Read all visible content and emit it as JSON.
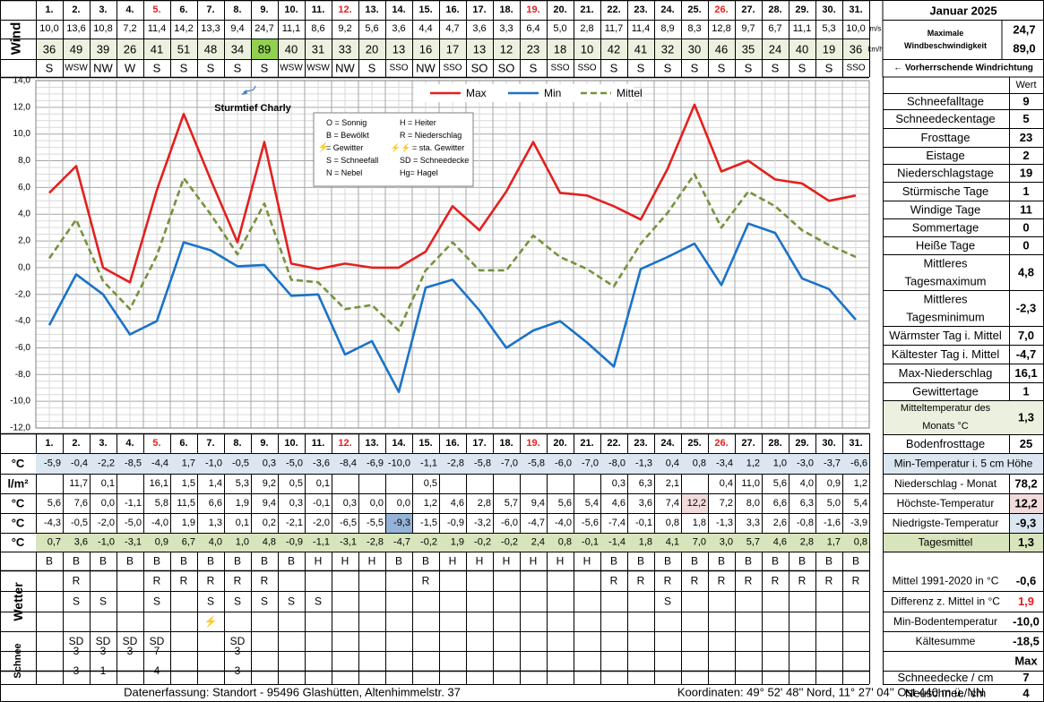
{
  "month_title": "Januar 2025",
  "days": [
    "1.",
    "2.",
    "3.",
    "4.",
    "5.",
    "6.",
    "7.",
    "8.",
    "9.",
    "10.",
    "11.",
    "12.",
    "13.",
    "14.",
    "15.",
    "16.",
    "17.",
    "18.",
    "19.",
    "20.",
    "21.",
    "22.",
    "23.",
    "24.",
    "25.",
    "26.",
    "27.",
    "28.",
    "29.",
    "30.",
    "31."
  ],
  "red_days": [
    5,
    12,
    19,
    26
  ],
  "wind": {
    "label": "Wind",
    "unit_ms": "m/s",
    "unit_kmh": "km/h",
    "ms": [
      "10,0",
      "13,6",
      "10,8",
      "7,2",
      "11,4",
      "14,2",
      "13,3",
      "9,4",
      "24,7",
      "11,1",
      "8,6",
      "9,2",
      "5,6",
      "3,6",
      "4,4",
      "4,7",
      "3,6",
      "3,3",
      "6,4",
      "5,0",
      "2,8",
      "11,7",
      "11,4",
      "8,9",
      "8,3",
      "12,8",
      "9,7",
      "6,7",
      "11,1",
      "5,3",
      "10,0"
    ],
    "kmh": [
      "36",
      "49",
      "39",
      "26",
      "41",
      "51",
      "48",
      "34",
      "89",
      "40",
      "31",
      "33",
      "20",
      "13",
      "16",
      "17",
      "13",
      "12",
      "23",
      "18",
      "10",
      "42",
      "41",
      "32",
      "30",
      "46",
      "35",
      "24",
      "40",
      "19",
      "36"
    ],
    "dir": [
      "S",
      "WSW",
      "NW",
      "W",
      "S",
      "S",
      "S",
      "S",
      "S",
      "WSW",
      "WSW",
      "NW",
      "S",
      "SSO",
      "NW",
      "SSO",
      "SO",
      "SO",
      "S",
      "SSO",
      "SSO",
      "S",
      "S",
      "S",
      "S",
      "S",
      "S",
      "S",
      "S",
      "S",
      "SSO"
    ],
    "max_label": "Maximale Windbeschwindigkeit",
    "max_ms": "24,7",
    "max_kmh": "89,0",
    "dir_note": "← Vorherrschende Windrichtung",
    "highlight_color": "#92d050"
  },
  "storm_label": "Sturmtief Charly",
  "legend_box": {
    "left": [
      "O = Sonnig",
      "B = Bewölkt",
      "= Gewitter",
      "S = Schneefall",
      "N = Nebel"
    ],
    "right": [
      "H = Heiter",
      "R = Niederschlag",
      "= sta. Gewitter",
      "SD = Schneedecke",
      "Hg= Hagel"
    ]
  },
  "chart_data": {
    "type": "line",
    "x": [
      1,
      2,
      3,
      4,
      5,
      6,
      7,
      8,
      9,
      10,
      11,
      12,
      13,
      14,
      15,
      16,
      17,
      18,
      19,
      20,
      21,
      22,
      23,
      24,
      25,
      26,
      27,
      28,
      29,
      30,
      31
    ],
    "ylim": [
      -12,
      14
    ],
    "yticks": [
      "14,0",
      "12,0",
      "10,0",
      "8,0",
      "6,0",
      "4,0",
      "2,0",
      "0,0",
      "-2,0",
      "-4,0",
      "-6,0",
      "-8,0",
      "-10,0",
      "-12,0"
    ],
    "series": [
      {
        "name": "Max",
        "color": "#e3201e",
        "dash": false,
        "values": [
          5.6,
          7.6,
          0.0,
          -1.1,
          5.8,
          11.5,
          6.6,
          1.9,
          9.4,
          0.3,
          -0.1,
          0.3,
          0.0,
          0.0,
          1.2,
          4.6,
          2.8,
          5.7,
          9.4,
          5.6,
          5.4,
          4.6,
          3.6,
          7.4,
          12.2,
          7.2,
          8.0,
          6.6,
          6.3,
          5.0,
          5.4
        ]
      },
      {
        "name": "Min",
        "color": "#1a73c8",
        "dash": false,
        "values": [
          -4.3,
          -0.5,
          -2.0,
          -5.0,
          -4.0,
          1.9,
          1.3,
          0.1,
          0.2,
          -2.1,
          -2.0,
          -6.5,
          -5.5,
          -9.3,
          -1.5,
          -0.9,
          -3.2,
          -6.0,
          -4.7,
          -4.0,
          -5.6,
          -7.4,
          -0.1,
          0.8,
          1.8,
          -1.3,
          3.3,
          2.6,
          -0.8,
          -1.6,
          -3.9
        ]
      },
      {
        "name": "Mittel",
        "color": "#76923c",
        "dash": true,
        "values": [
          0.7,
          3.6,
          -1.0,
          -3.1,
          0.9,
          6.7,
          4.0,
          1.0,
          4.8,
          -0.9,
          -1.1,
          -3.1,
          -2.8,
          -4.7,
          -0.2,
          1.9,
          -0.2,
          -0.2,
          2.4,
          0.8,
          -0.1,
          -1.4,
          1.8,
          4.1,
          7.0,
          3.0,
          5.7,
          4.6,
          2.8,
          1.7,
          0.8
        ]
      }
    ]
  },
  "rows": {
    "min5": {
      "unit": "°C",
      "label": "Min-Temperatur i. 5 cm Höhe",
      "values": [
        "-5,9",
        "-0,4",
        "-2,2",
        "-8,5",
        "-4,4",
        "1,7",
        "-1,0",
        "-0,5",
        "0,3",
        "-5,0",
        "-3,6",
        "-8,4",
        "-6,9",
        "-10,0",
        "-1,1",
        "-2,8",
        "-5,8",
        "-7,0",
        "-5,8",
        "-6,0",
        "-7,0",
        "-8,0",
        "-1,3",
        "0,4",
        "0,8",
        "-3,4",
        "1,2",
        "1,0",
        "-3,0",
        "-3,7",
        "-6,6"
      ],
      "bg": "#dce6f1"
    },
    "rain": {
      "unit": "l/m²",
      "label": "Niederschlag - Monat",
      "total": "78,2",
      "values": [
        "",
        "11,7",
        "0,1",
        "",
        "16,1",
        "1,5",
        "1,4",
        "5,3",
        "9,2",
        "0,5",
        "0,1",
        "",
        "",
        "",
        "0,5",
        "",
        "",
        "",
        "",
        "",
        "",
        "0,3",
        "6,3",
        "2,1",
        "",
        "0,4",
        "11,0",
        "5,6",
        "4,0",
        "0,9",
        "1,2"
      ],
      "highlight_color": "#fac090"
    },
    "max": {
      "unit": "°C",
      "label": "Höchste-Temperatur",
      "total": "12,2",
      "values": [
        "5,6",
        "7,6",
        "0,0",
        "-1,1",
        "5,8",
        "11,5",
        "6,6",
        "1,9",
        "9,4",
        "0,3",
        "-0,1",
        "0,3",
        "0,0",
        "0,0",
        "1,2",
        "4,6",
        "2,8",
        "5,7",
        "9,4",
        "5,6",
        "5,4",
        "4,6",
        "3,6",
        "7,4",
        "12,2",
        "7,2",
        "8,0",
        "6,6",
        "6,3",
        "5,0",
        "5,4"
      ],
      "highlight_color": "#f2dcdb"
    },
    "min": {
      "unit": "°C",
      "label": "Niedrigste-Temperatur",
      "total": "-9,3",
      "values": [
        "-4,3",
        "-0,5",
        "-2,0",
        "-5,0",
        "-4,0",
        "1,9",
        "1,3",
        "0,1",
        "0,2",
        "-2,1",
        "-2,0",
        "-6,5",
        "-5,5",
        "-9,3",
        "-1,5",
        "-0,9",
        "-3,2",
        "-6,0",
        "-4,7",
        "-4,0",
        "-5,6",
        "-7,4",
        "-0,1",
        "0,8",
        "1,8",
        "-1,3",
        "3,3",
        "2,6",
        "-0,8",
        "-1,6",
        "-3,9"
      ],
      "highlight_color": "#95b3d7"
    },
    "mean": {
      "unit": "°C",
      "label": "Tagesmittel",
      "total": "1,3",
      "values": [
        "0,7",
        "3,6",
        "-1,0",
        "-3,1",
        "0,9",
        "6,7",
        "4,0",
        "1,0",
        "4,8",
        "-0,9",
        "-1,1",
        "-3,1",
        "-2,8",
        "-4,7",
        "-0,2",
        "1,9",
        "-0,2",
        "-0,2",
        "2,4",
        "0,8",
        "-0,1",
        "-1,4",
        "1,8",
        "4,1",
        "7,0",
        "3,0",
        "5,7",
        "4,6",
        "2,8",
        "1,7",
        "0,8"
      ],
      "bg": "#d8e4bc",
      "highlight_color": "#92d050"
    }
  },
  "wetter": {
    "label": "Wetter",
    "row1": [
      "B",
      "B",
      "B",
      "B",
      "B",
      "B",
      "B",
      "B",
      "B",
      "B",
      "H",
      "H",
      "H",
      "B",
      "B",
      "H",
      "H",
      "H",
      "H",
      "H",
      "H",
      "B",
      "B",
      "B",
      "B",
      "B",
      "B",
      "B",
      "B",
      "B",
      "B"
    ],
    "row2": [
      "",
      "R",
      "",
      "",
      "R",
      "R",
      "R",
      "R",
      "R",
      "",
      "",
      "",
      "",
      "",
      "R",
      "",
      "",
      "",
      "",
      "",
      "",
      "R",
      "R",
      "R",
      "R",
      "R",
      "R",
      "R",
      "R",
      "R",
      "R"
    ],
    "row3": [
      "",
      "S",
      "S",
      "",
      "S",
      "",
      "S",
      "S",
      "S",
      "S",
      "S",
      "",
      "",
      "",
      "",
      "",
      "",
      "",
      "",
      "",
      "",
      "",
      "",
      "S",
      "",
      "",
      "",
      "",
      "",
      "",
      ""
    ],
    "row4": [
      "",
      "",
      "",
      "",
      "",
      "",
      "⚡",
      "",
      "",
      "",
      "",
      "",
      "",
      "",
      "",
      "",
      "",
      "",
      "",
      "",
      "",
      "",
      "",
      "",
      "",
      "",
      "",
      "",
      "",
      "",
      ""
    ],
    "row5": [
      "",
      "SD",
      "SD",
      "SD",
      "SD",
      "",
      "",
      "SD",
      "",
      "",
      "",
      "",
      "",
      "",
      "",
      "",
      "",
      "",
      "",
      "",
      "",
      "",
      "",
      "",
      "",
      "",
      "",
      "",
      "",
      "",
      ""
    ]
  },
  "schnee": {
    "label": "Schnee",
    "decke": [
      "",
      "3",
      "3",
      "3",
      "7",
      "",
      "",
      "3",
      "",
      "",
      "",
      "",
      "",
      "",
      "",
      "",
      "",
      "",
      "",
      "",
      "",
      "",
      "",
      "",
      "",
      "",
      "",
      "",
      "",
      "",
      ""
    ],
    "neu": [
      "",
      "3",
      "1",
      "",
      "4",
      "",
      "",
      "3",
      "",
      "",
      "",
      "",
      "",
      "",
      "",
      "",
      "",
      "",
      "",
      "",
      "",
      "",
      "",
      "",
      "",
      "",
      "",
      "",
      "",
      "",
      ""
    ]
  },
  "stats_header": "Wert",
  "stats": [
    {
      "label": "Schneefalltage",
      "value": "9"
    },
    {
      "label": "Schneedeckentage",
      "value": "5"
    },
    {
      "label": "Frosttage",
      "value": "23"
    },
    {
      "label": "Eistage",
      "value": "2"
    },
    {
      "label": "Niederschlagstage",
      "value": "19"
    },
    {
      "label": "Stürmische Tage",
      "value": "1"
    },
    {
      "label": "Windige Tage",
      "value": "11"
    },
    {
      "label": "Sommertage",
      "value": "0"
    },
    {
      "label": "Heiße Tage",
      "value": "0"
    },
    {
      "label": "Mittleres Tagesmaximum",
      "value": "4,8"
    },
    {
      "label": "Mittleres Tagesminimum",
      "value": "-2,3"
    },
    {
      "label": "Wärmster Tag i. Mittel",
      "value": "7,0"
    },
    {
      "label": "Kältester Tag i. Mittel",
      "value": "-4,7"
    },
    {
      "label": "Max-Niederschlag",
      "value": "16,1"
    },
    {
      "label": "Gewittertage",
      "value": "1"
    },
    {
      "label": "Mitteltemperatur des Monats °C",
      "value": "1,3"
    },
    {
      "label": "Bodenfrosttage",
      "value": "25"
    }
  ],
  "stats_low": [
    {
      "label": "Mittel 1991-2020 in °C",
      "value": "-0,6"
    },
    {
      "label": "Differenz z. Mittel in °C",
      "value": "1,9",
      "color": "#e3201e"
    },
    {
      "label": "Min-Bodentemperatur",
      "value": "-10,0"
    },
    {
      "label": "Kältesumme",
      "value": "-18,5"
    },
    {
      "label": "",
      "value": "Max"
    },
    {
      "label": "Schneedecke / cm",
      "value": "7"
    },
    {
      "label": "Neuschnee/ cm",
      "value": "4"
    }
  ],
  "footer_left": "Datenerfassung:  Standort -  95496  Glashütten, Altenhimmelstr. 37",
  "footer_right": "Koordinaten:  49° 52' 48'' Nord,  11° 27' 04'' Ost  440 m ü. NN"
}
